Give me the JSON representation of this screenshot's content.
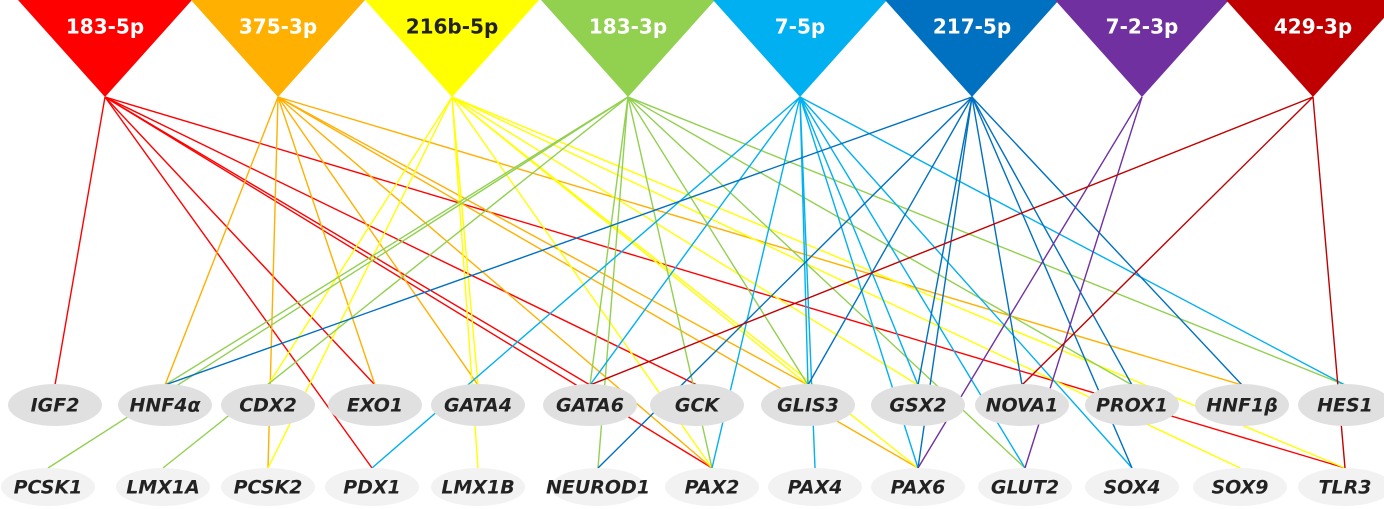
{
  "mirnas": [
    {
      "label": "183-5p"
    },
    {
      "label": "375-3p"
    },
    {
      "label": "216b-5p"
    },
    {
      "label": "183-3p"
    },
    {
      "label": "7-5p"
    },
    {
      "label": "217-5p"
    },
    {
      "label": "7-2-3p"
    },
    {
      "label": "429-3p"
    }
  ],
  "genes_row1": [
    {
      "label": "IGF2"
    },
    {
      "label": "HNF4α"
    },
    {
      "label": "CDX2"
    },
    {
      "label": "EXO1"
    },
    {
      "label": "GATA4"
    },
    {
      "label": "GATA6"
    },
    {
      "label": "GCK"
    },
    {
      "label": "GLIS3"
    },
    {
      "label": "GSX2"
    },
    {
      "label": "NOVA1"
    },
    {
      "label": "PROX1"
    },
    {
      "label": "HNF1β"
    },
    {
      "label": "HES1"
    }
  ],
  "genes_row2": [
    {
      "label": "PCSK1"
    },
    {
      "label": "LMX1A"
    },
    {
      "label": "PCSK2"
    },
    {
      "label": "PDX1"
    },
    {
      "label": "LMX1B"
    },
    {
      "label": "NEUROD1"
    },
    {
      "label": "PAX2"
    },
    {
      "label": "PAX4"
    },
    {
      "label": "PAX6"
    },
    {
      "label": "GLUT2"
    },
    {
      "label": "SOX4"
    },
    {
      "label": "SOX9"
    },
    {
      "label": "TLR3"
    }
  ]
}
